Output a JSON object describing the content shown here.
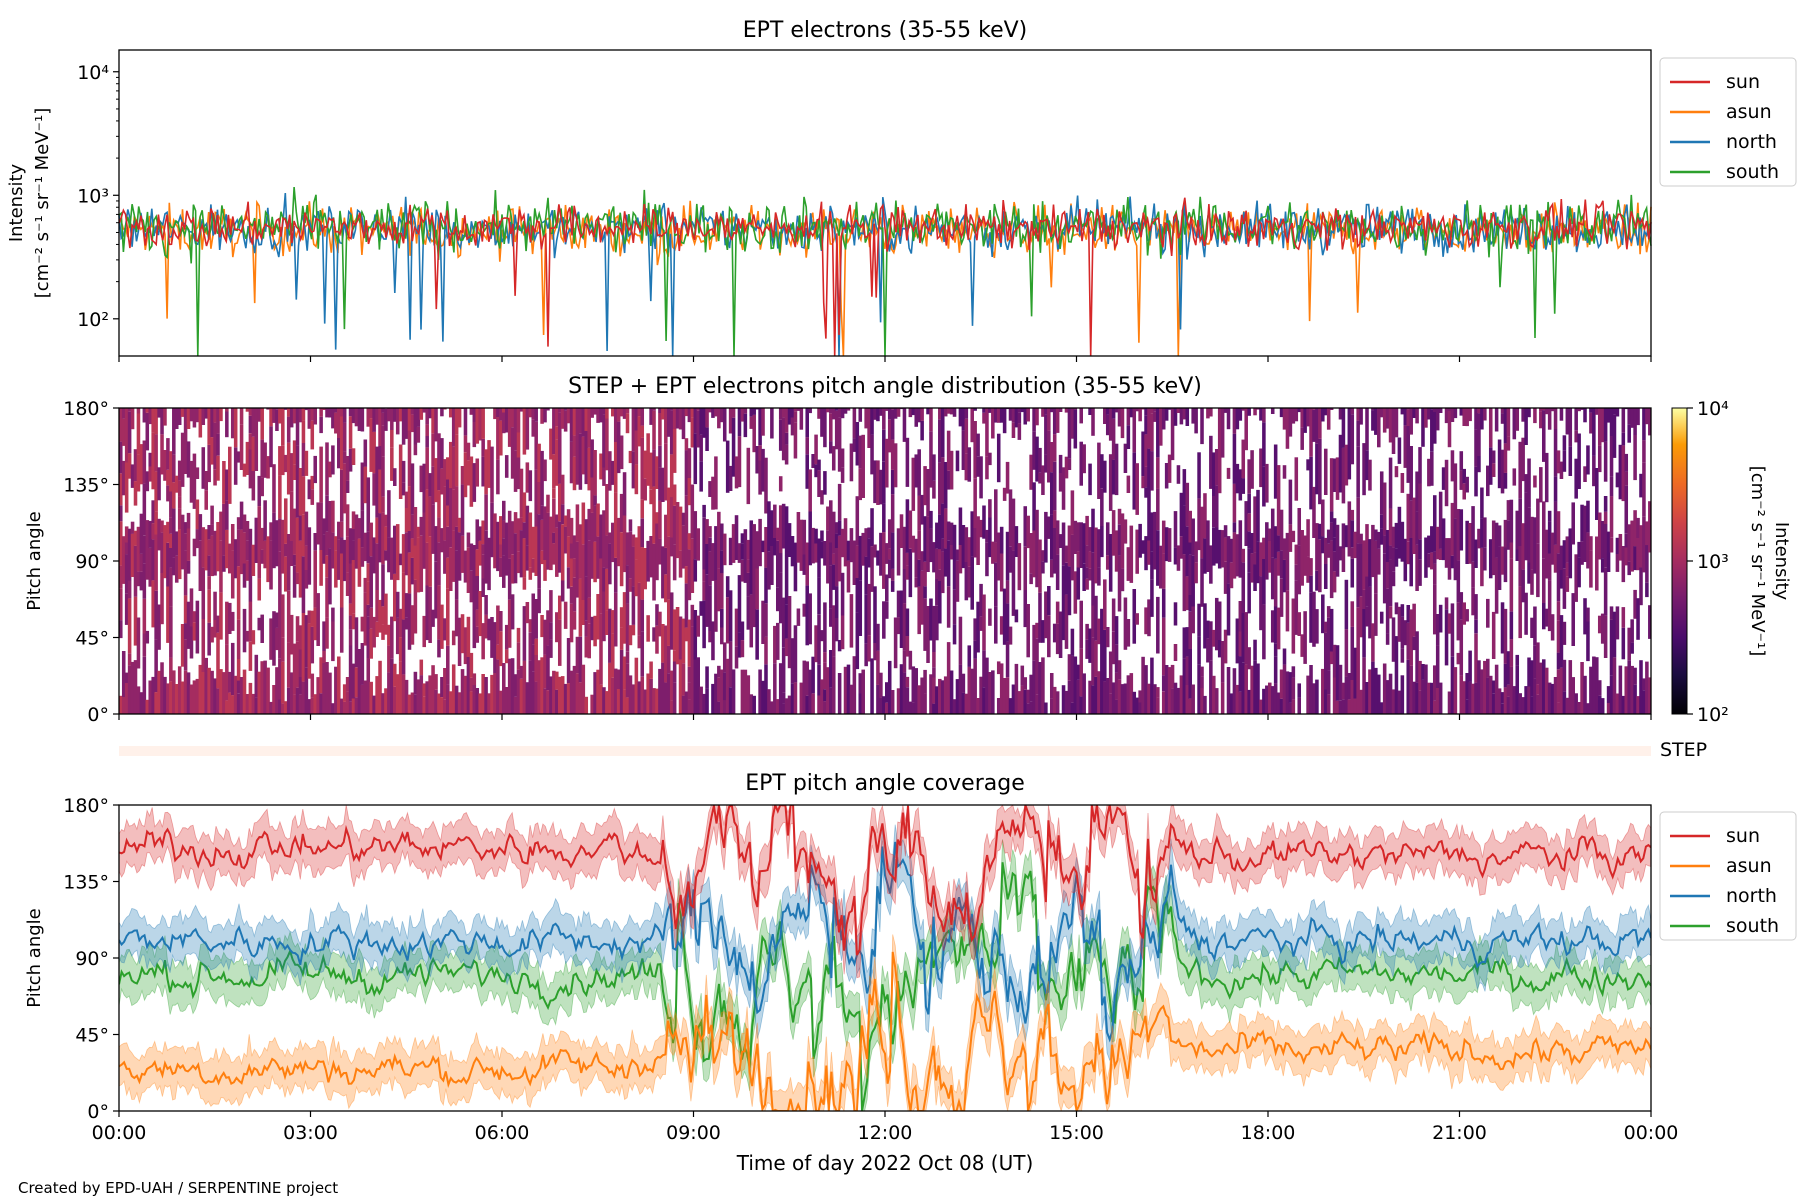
{
  "footer": "Created by EPD-UAH / SERPENTINE project",
  "xaxis": {
    "label": "Time of day 2022 Oct 08 (UT)",
    "ticks": [
      "00:00",
      "03:00",
      "06:00",
      "09:00",
      "12:00",
      "15:00",
      "18:00",
      "21:00",
      "00:00"
    ],
    "range_hours": [
      0,
      24
    ]
  },
  "colors": {
    "sun": "#d62728",
    "asun": "#ff7f0e",
    "north": "#1f77b4",
    "south": "#2ca02c",
    "step_band": "#fff1ea"
  },
  "chart_data": [
    {
      "type": "line",
      "title": "EPT electrons (35-55 keV)",
      "ylabel_line1": "Intensity",
      "ylabel_line2": "[cm⁻² s⁻¹ sr⁻¹ MeV⁻¹]",
      "yscale": "log",
      "ylim": [
        50,
        15000
      ],
      "yticks": [
        "10²",
        "10³",
        "10⁴"
      ],
      "legend": "outside-right",
      "series": [
        {
          "name": "sun",
          "color": "#d62728",
          "typical": 550,
          "spread": 0.12
        },
        {
          "name": "asun",
          "color": "#ff7f0e",
          "typical": 520,
          "spread": 0.14
        },
        {
          "name": "north",
          "color": "#1f77b4",
          "typical": 540,
          "spread": 0.14
        },
        {
          "name": "south",
          "color": "#2ca02c",
          "typical": 560,
          "spread": 0.15
        }
      ]
    },
    {
      "type": "heatmap",
      "title": "STEP + EPT electrons pitch angle distribution (35-55 keV)",
      "ylabel": "Pitch angle",
      "yticks": [
        "0°",
        "45°",
        "90°",
        "135°",
        "180°"
      ],
      "ylim": [
        0,
        180
      ],
      "colorbar": {
        "label_line1": "Intensity",
        "label_line2": "[cm⁻² s⁻¹ sr⁻¹ MeV⁻¹]",
        "ticks": [
          "10²",
          "10³",
          "10⁴"
        ],
        "scale": "log",
        "range": [
          100,
          10000
        ],
        "colormap": "inferno"
      },
      "step_label": "STEP"
    },
    {
      "type": "line",
      "title": "EPT pitch angle coverage",
      "ylabel": "Pitch angle",
      "yticks": [
        "0°",
        "45°",
        "90°",
        "135°",
        "180°"
      ],
      "ylim": [
        0,
        180
      ],
      "legend": "outside-right",
      "series": [
        {
          "name": "sun",
          "color": "#d62728",
          "early_mean": 155,
          "late_mean": 150
        },
        {
          "name": "asun",
          "color": "#ff7f0e",
          "early_mean": 25,
          "late_mean": 35
        },
        {
          "name": "north",
          "color": "#1f77b4",
          "early_mean": 100,
          "late_mean": 100
        },
        {
          "name": "south",
          "color": "#2ca02c",
          "early_mean": 80,
          "late_mean": 80
        }
      ]
    }
  ]
}
